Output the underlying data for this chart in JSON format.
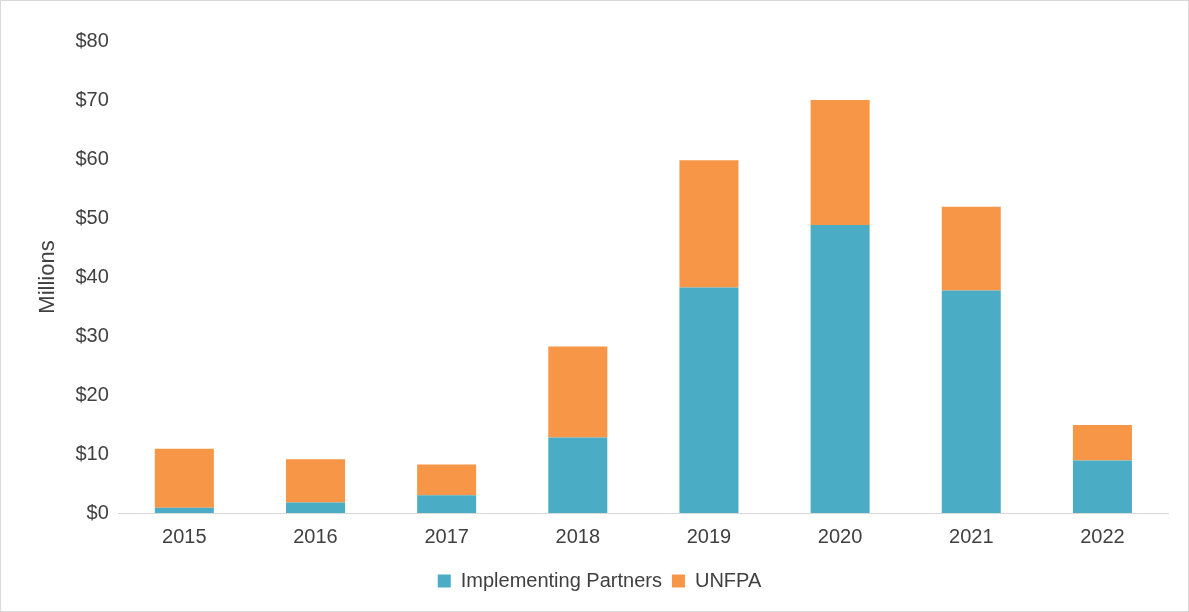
{
  "chart_data": {
    "type": "bar",
    "stacked": true,
    "ylabel": "Millions",
    "categories": [
      "2015",
      "2016",
      "2017",
      "2018",
      "2019",
      "2020",
      "2021",
      "2022"
    ],
    "series": [
      {
        "name": "Implementing Partners",
        "color": "#4bacc6",
        "values": [
          0.9,
          1.8,
          3.0,
          12.8,
          38.2,
          48.8,
          37.7,
          8.9
        ]
      },
      {
        "name": "UNFPA",
        "color": "#f79646",
        "values": [
          10.0,
          7.3,
          5.2,
          15.4,
          21.6,
          21.2,
          14.2,
          6.0
        ]
      }
    ],
    "ylim": [
      0,
      80
    ],
    "yticks": [
      {
        "value": 0,
        "label": "$0"
      },
      {
        "value": 10,
        "label": "$10"
      },
      {
        "value": 20,
        "label": "$20"
      },
      {
        "value": 30,
        "label": "$30"
      },
      {
        "value": 40,
        "label": "$40"
      },
      {
        "value": 50,
        "label": "$50"
      },
      {
        "value": 60,
        "label": "$60"
      },
      {
        "value": 70,
        "label": "$70"
      },
      {
        "value": 80,
        "label": "$80"
      }
    ],
    "grid": false,
    "legend": "bottom"
  }
}
